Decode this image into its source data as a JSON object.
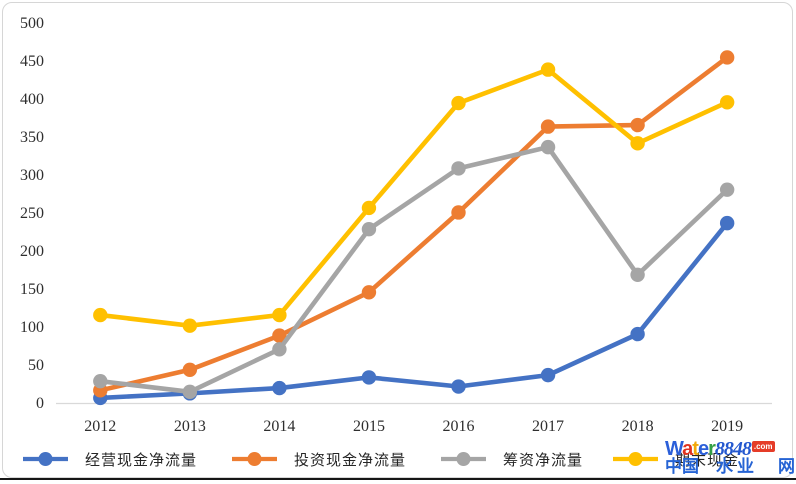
{
  "chart_data": {
    "type": "line",
    "title": "",
    "xlabel": "",
    "ylabel": "",
    "categories": [
      "2012",
      "2013",
      "2014",
      "2015",
      "2016",
      "2017",
      "2018",
      "2019"
    ],
    "series": [
      {
        "name": "经营现金净流量",
        "color": "#4472C4",
        "values": [
          8,
          14,
          21,
          35,
          23,
          38,
          92,
          238
        ]
      },
      {
        "name": "投资现金净流量",
        "color": "#ED7D31",
        "values": [
          18,
          45,
          90,
          147,
          252,
          365,
          367,
          456
        ]
      },
      {
        "name": "筹资净流量",
        "color": "#A5A5A5",
        "values": [
          30,
          16,
          72,
          230,
          310,
          338,
          170,
          282
        ]
      },
      {
        "name": "期末现金",
        "color": "#FFC000",
        "values": [
          117,
          103,
          117,
          258,
          396,
          440,
          343,
          397
        ]
      }
    ],
    "ylim": [
      0,
      500
    ],
    "y_ticks": [
      0,
      50,
      100,
      150,
      200,
      250,
      300,
      350,
      400,
      450,
      500
    ],
    "grid": false,
    "legend_position": "bottom",
    "axis_line_color": "#d9d9d9"
  },
  "watermark": {
    "brand_letters": [
      {
        "ch": "W",
        "color": "#2b5fd9"
      },
      {
        "ch": "a",
        "color": "#e0321f"
      },
      {
        "ch": "t",
        "color": "#f2a90a"
      },
      {
        "ch": "e",
        "color": "#2b5fd9"
      },
      {
        "ch": "r",
        "color": "#33a046"
      }
    ],
    "brand_number": "8848",
    "brand_suffix": ".com",
    "site_name_chars": [
      "中",
      "国",
      "水",
      "业",
      "网"
    ]
  }
}
